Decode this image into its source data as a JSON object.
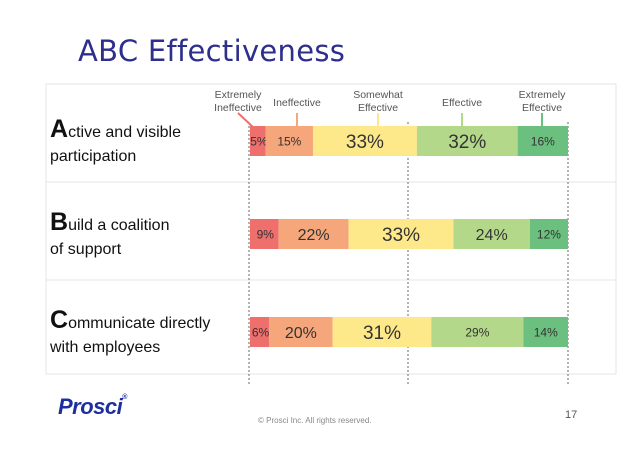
{
  "slide": {
    "title": "ABC Effectiveness",
    "logo": "Prosci",
    "logo_mark": "®",
    "copyright": "© Prosci Inc. All rights reserved.",
    "page_number": "17"
  },
  "chart_data": {
    "type": "bar",
    "stacked": true,
    "orientation": "horizontal",
    "scale_labels": [
      [
        "Extremely",
        "Ineffective"
      ],
      [
        "Ineffective"
      ],
      [
        "Somewhat",
        "Effective"
      ],
      [
        "Effective"
      ],
      [
        "Extremely",
        "Effective"
      ]
    ],
    "colors": [
      "#ef6f6c",
      "#f5a67a",
      "#fde88a",
      "#b4d88a",
      "#6cc07f"
    ],
    "categories": [
      {
        "initial": "A",
        "line1_rest": "ctive and visible",
        "line2": "participation"
      },
      {
        "initial": "B",
        "line1_rest": "uild a coalition",
        "line2": "of support"
      },
      {
        "initial": "C",
        "line1_rest": "ommunicate directly",
        "line2": "with employees"
      }
    ],
    "series": [
      {
        "values": [
          5,
          9,
          6
        ]
      },
      {
        "values": [
          15,
          22,
          20
        ]
      },
      {
        "values": [
          33,
          33,
          31
        ]
      },
      {
        "values": [
          32,
          24,
          29
        ]
      },
      {
        "values": [
          16,
          12,
          14
        ]
      }
    ],
    "labels": [
      [
        "5%",
        "15%",
        "33%",
        "32%",
        "16%"
      ],
      [
        "9%",
        "22%",
        "33%",
        "24%",
        "12%"
      ],
      [
        "6%",
        "20%",
        "31%",
        "29%",
        "14%"
      ]
    ],
    "legend": "top",
    "grid": false
  }
}
